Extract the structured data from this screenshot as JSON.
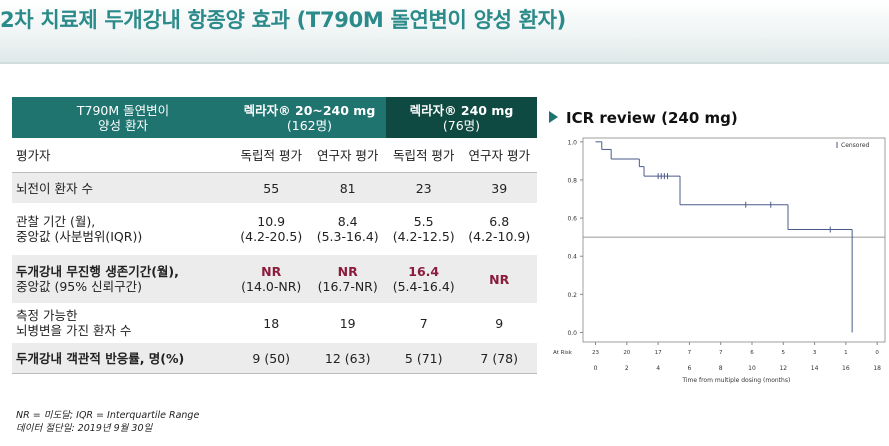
{
  "title": "2차 치료제 두개강내 항종양 효과 (T790M 돌연변이 양성 환자)",
  "table": {
    "header": [
      [
        "T790M 돌연변이",
        "양성 환자"
      ],
      [
        "렉라자® 20~240 mg",
        "(162명)"
      ],
      [
        "렉라자® 240 mg",
        "(76명)"
      ]
    ],
    "subheader": [
      "평가자",
      "독립적 평가",
      "연구자 평가",
      "독립적 평가",
      "연구자 평가"
    ],
    "rows": [
      [
        [
          "뇌전이 환자 수"
        ],
        [
          "55"
        ],
        [
          "81"
        ],
        [
          "23"
        ],
        [
          "39"
        ]
      ],
      [
        [
          "관찰 기간 (월),",
          "중앙값 (사분범위(IQR))"
        ],
        [
          "10.9",
          "(4.2-20.5)"
        ],
        [
          "8.4",
          "(5.3-16.4)"
        ],
        [
          "5.5",
          "(4.2-12.5)"
        ],
        [
          "6.8",
          "(4.2-10.9)"
        ]
      ],
      [
        [
          "두개강내 무진행 생존기간(월),",
          "중앙값 (95% 신뢰구간)"
        ],
        [
          "NR",
          "(14.0-NR)"
        ],
        [
          "NR",
          "(16.7-NR)"
        ],
        [
          "16.4",
          "(5.4-16.4)"
        ],
        [
          "NR"
        ]
      ],
      [
        [
          "측정 가능한",
          "뇌병변을 가진 환자 수"
        ],
        [
          "18"
        ],
        [
          "19"
        ],
        [
          "7"
        ],
        [
          "9"
        ]
      ],
      [
        [
          "두개강내 객관적 반응률, 명(%)"
        ],
        [
          "9 (50)"
        ],
        [
          "12 (63)"
        ],
        [
          "5 (71)"
        ],
        [
          "7 (78)"
        ]
      ]
    ]
  },
  "chart_data": {
    "type": "line",
    "step": true,
    "title": "ICR review (240 mg)",
    "xlabel": "Time from multiple dosing (months)",
    "x": [
      0,
      0.4,
      1.0,
      2.8,
      3.1,
      5.4,
      12.3,
      16.4
    ],
    "values": [
      1.0,
      0.96,
      0.91,
      0.87,
      0.82,
      0.67,
      0.54,
      0.0
    ],
    "color": "#4a5a8a",
    "censored": {
      "name": "Censored",
      "x": [
        4.0,
        4.2,
        4.4,
        4.6,
        9.6,
        11.2,
        15.0
      ],
      "values": [
        0.82,
        0.82,
        0.82,
        0.82,
        0.67,
        0.67,
        0.54
      ]
    },
    "reference_line": 0.5,
    "xlim": [
      -0.8,
      18.5
    ],
    "ylim": [
      -0.05,
      1.02
    ],
    "xticks": [
      0,
      2,
      4,
      6,
      8,
      10,
      12,
      14,
      16,
      18
    ],
    "yticks": [
      {
        "value": 0,
        "label": "0.0"
      },
      {
        "value": 0.2,
        "label": "0.2"
      },
      {
        "value": 0.4,
        "label": "0.4"
      },
      {
        "value": 0.6,
        "label": "0.6"
      },
      {
        "value": 0.8,
        "label": "0.8"
      },
      {
        "value": 1,
        "label": "1.0"
      }
    ],
    "at_risk_label": "At Risk",
    "at_risk": [
      23,
      20,
      17,
      7,
      7,
      6,
      5,
      3,
      1,
      0
    ],
    "legend": "upper right"
  },
  "footnotes": [
    "NR = 미도달; IQR = Interquartile Range",
    "데이터 절단일: 2019년 9월 30일"
  ]
}
